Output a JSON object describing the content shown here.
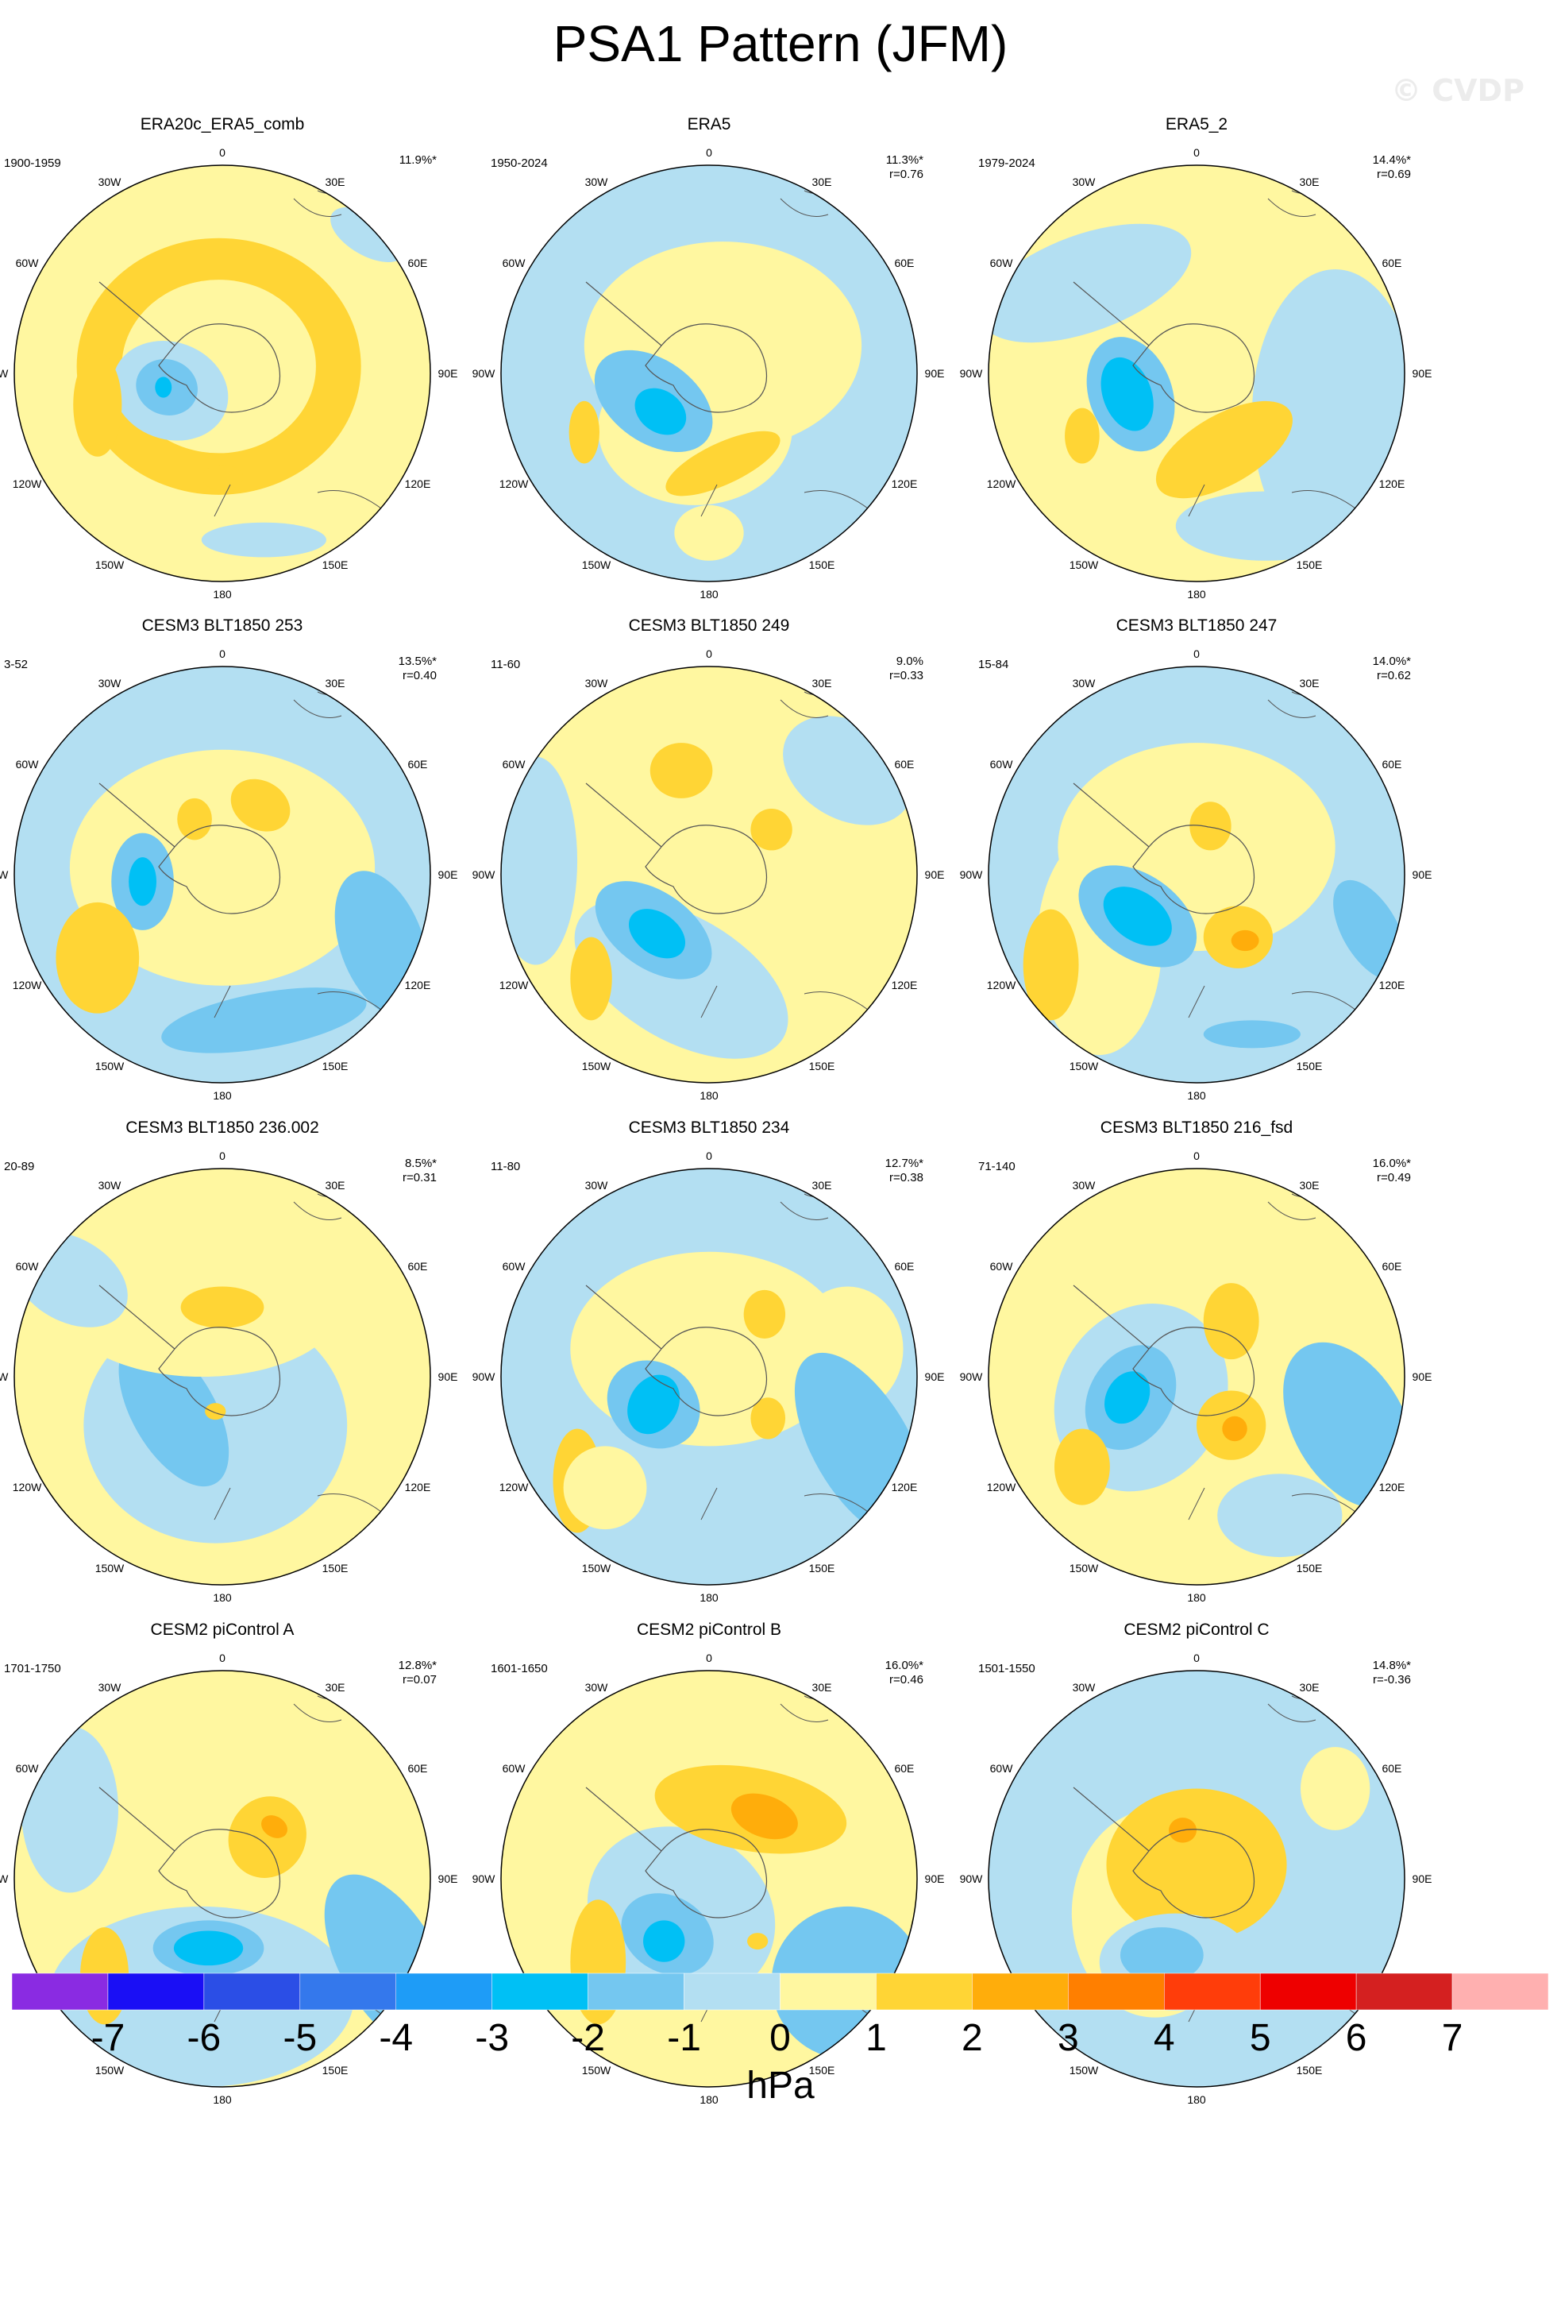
{
  "title": "PSA1 Pattern (JFM)",
  "watermark": "© CVDP",
  "units": "hPa",
  "lon_labels": [
    "0",
    "30E",
    "60E",
    "90E",
    "120E",
    "150E",
    "180",
    "150W",
    "120W",
    "90W",
    "60W",
    "30W"
  ],
  "colorbar": {
    "labels": [
      "-7",
      "-6",
      "-5",
      "-4",
      "-3",
      "-2",
      "-1",
      "0",
      "1",
      "2",
      "3",
      "4",
      "5",
      "6",
      "7"
    ],
    "colors": [
      "#8a2be2",
      "#1a0ff5",
      "#2b4ee6",
      "#3478ec",
      "#1e9cf7",
      "#00c0f5",
      "#74c7f0",
      "#b3dff2",
      "#fff7a0",
      "#ffd535",
      "#ffad0b",
      "#ff7f00",
      "#ff3d0a",
      "#ee0000",
      "#d42020",
      "#ffb0b0"
    ]
  },
  "panels": [
    {
      "title": "ERA20c_ERA5_comb",
      "period": "1900-1959",
      "pct": "11.9%*",
      "r": ""
    },
    {
      "title": "ERA5",
      "period": "1950-2024",
      "pct": "11.3%*",
      "r": "r=0.76"
    },
    {
      "title": "ERA5_2",
      "period": "1979-2024",
      "pct": "14.4%*",
      "r": "r=0.69"
    },
    {
      "title": "CESM3 BLT1850 253",
      "period": "3-52",
      "pct": "13.5%*",
      "r": "r=0.40"
    },
    {
      "title": "CESM3 BLT1850 249",
      "period": "11-60",
      "pct": "9.0%",
      "r": "r=0.33"
    },
    {
      "title": "CESM3 BLT1850 247",
      "period": "15-84",
      "pct": "14.0%*",
      "r": "r=0.62"
    },
    {
      "title": "CESM3 BLT1850 236.002",
      "period": "20-89",
      "pct": "8.5%*",
      "r": "r=0.31"
    },
    {
      "title": "CESM3 BLT1850 234",
      "period": "11-80",
      "pct": "12.7%*",
      "r": "r=0.38"
    },
    {
      "title": "CESM3 BLT1850 216_fsd",
      "period": "71-140",
      "pct": "16.0%*",
      "r": "r=0.49"
    },
    {
      "title": "CESM2 piControl A",
      "period": "1701-1750",
      "pct": "12.8%*",
      "r": "r=0.07"
    },
    {
      "title": "CESM2 piControl B",
      "period": "1601-1650",
      "pct": "16.0%*",
      "r": "r=0.46"
    },
    {
      "title": "CESM2 piControl C",
      "period": "1501-1550",
      "pct": "14.8%*",
      "r": "r=-0.36"
    }
  ]
}
